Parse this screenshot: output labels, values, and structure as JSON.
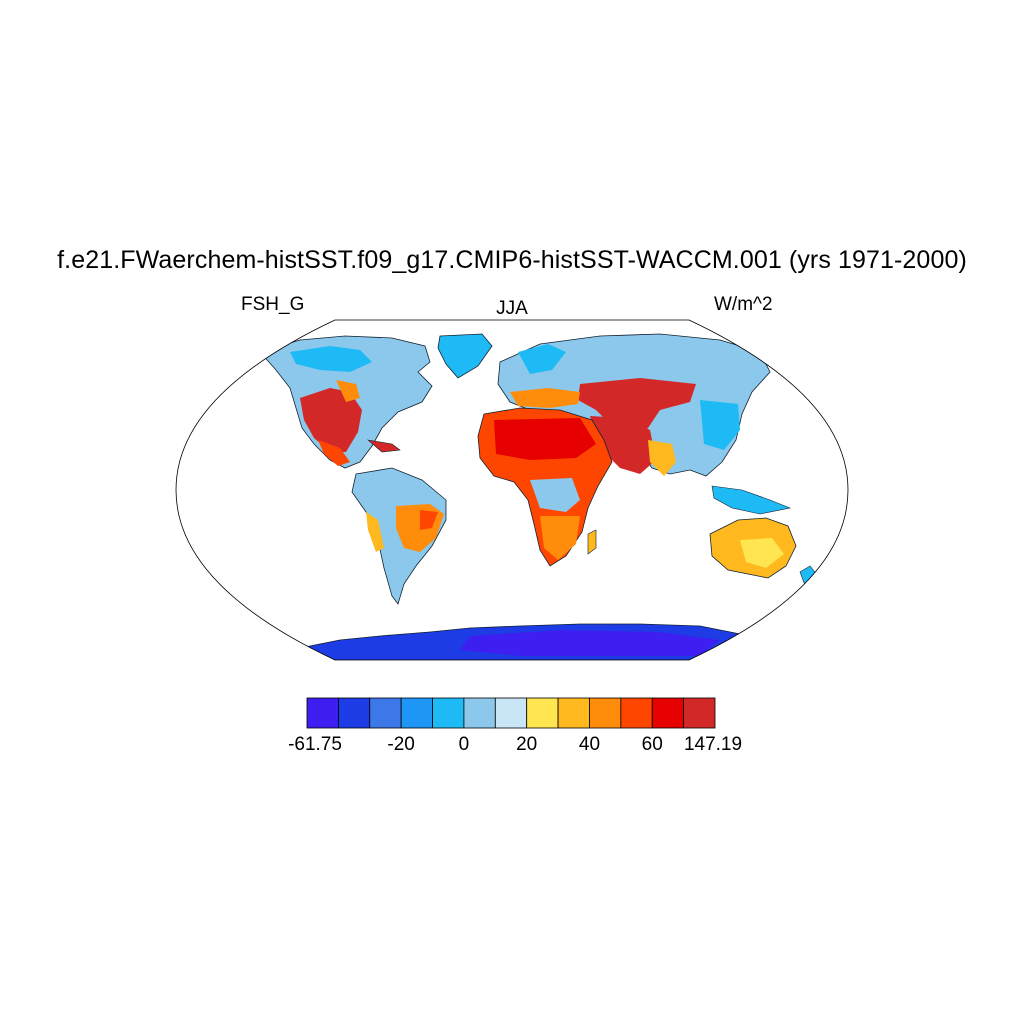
{
  "figure": {
    "title": "f.e21.FWaerchem-histSST.f09_g17.CMIP6-histSST-WACCM.001 (yrs 1971-2000)",
    "left_label": "FSH_G",
    "center_label": "JJA",
    "right_label": "W/m^2"
  },
  "map": {
    "projection": "Robinson",
    "variable": "FSH_G",
    "season": "JJA",
    "units": "W/m^2",
    "ocean_color": "#ffffff"
  },
  "colorbar": {
    "colors": [
      "#3e1ff2",
      "#1e3ce6",
      "#3c78e8",
      "#1e96f5",
      "#1ebaf5",
      "#8cc8eb",
      "#c8e6f5",
      "#ffe650",
      "#ffb91e",
      "#ff8c0a",
      "#ff4600",
      "#e60000",
      "#d22828"
    ],
    "tick_labels": [
      {
        "text": "-61.75",
        "boundary_index": 0
      },
      {
        "text": "-20",
        "boundary_index": 3
      },
      {
        "text": "0",
        "boundary_index": 5
      },
      {
        "text": "20",
        "boundary_index": 7
      },
      {
        "text": "40",
        "boundary_index": 9
      },
      {
        "text": "60",
        "boundary_index": 11
      },
      {
        "text": "147.19",
        "boundary_index": 13
      }
    ]
  }
}
